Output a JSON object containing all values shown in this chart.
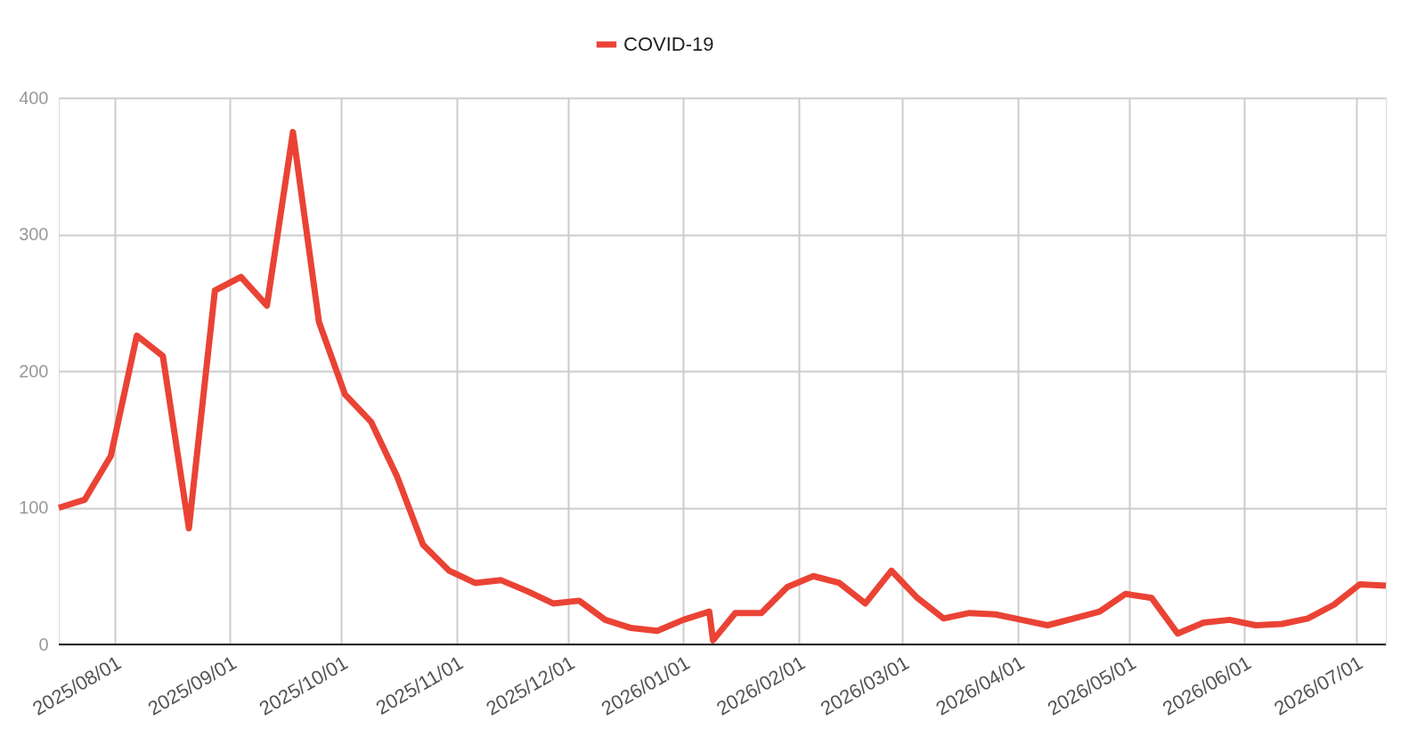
{
  "chart_data": {
    "type": "line",
    "x": [
      "2025-07-17",
      "2025-07-24",
      "2025-07-31",
      "2025-08-07",
      "2025-08-14",
      "2025-08-21",
      "2025-08-28",
      "2025-09-04",
      "2025-09-11",
      "2025-09-18",
      "2025-09-25",
      "2025-10-02",
      "2025-10-09",
      "2025-10-16",
      "2025-10-23",
      "2025-10-30",
      "2025-11-06",
      "2025-11-13",
      "2025-11-20",
      "2025-11-27",
      "2025-12-04",
      "2025-12-11",
      "2025-12-18",
      "2025-12-25",
      "2026-01-01",
      "2026-01-08",
      "2026-01-09",
      "2026-01-15",
      "2026-01-22",
      "2026-01-29",
      "2026-02-05",
      "2026-02-12",
      "2026-02-19",
      "2026-02-26",
      "2026-03-05",
      "2026-03-12",
      "2026-03-19",
      "2026-03-26",
      "2026-04-02",
      "2026-04-09",
      "2026-04-16",
      "2026-04-23",
      "2026-04-30",
      "2026-05-07",
      "2026-05-14",
      "2026-05-21",
      "2026-05-28",
      "2026-06-04",
      "2026-06-11",
      "2026-06-18",
      "2026-06-25",
      "2026-07-02",
      "2026-07-09"
    ],
    "series": [
      {
        "name": "COVID-19",
        "color": "#ea4335",
        "values": [
          100,
          106,
          138,
          226,
          211,
          85,
          259,
          269,
          248,
          375,
          236,
          183,
          163,
          123,
          73,
          54,
          45,
          47,
          39,
          30,
          32,
          18,
          12,
          10,
          18,
          24,
          3,
          23,
          23,
          42,
          50,
          45,
          30,
          54,
          34,
          19,
          23,
          22,
          18,
          14,
          19,
          24,
          37,
          34,
          8,
          16,
          18,
          14,
          15,
          19,
          29,
          44,
          43
        ]
      }
    ],
    "xlim": [
      "2025-07-17",
      "2026-07-09"
    ],
    "xticks": [
      {
        "value": "2025-08-01",
        "label": "2025/08/01"
      },
      {
        "value": "2025-09-01",
        "label": "2025/09/01"
      },
      {
        "value": "2025-10-01",
        "label": "2025/10/01"
      },
      {
        "value": "2025-11-01",
        "label": "2025/11/01"
      },
      {
        "value": "2025-12-01",
        "label": "2025/12/01"
      },
      {
        "value": "2026-01-01",
        "label": "2026/01/01"
      },
      {
        "value": "2026-02-01",
        "label": "2026/02/01"
      },
      {
        "value": "2026-03-01",
        "label": "2026/03/01"
      },
      {
        "value": "2026-04-01",
        "label": "2026/04/01"
      },
      {
        "value": "2026-05-01",
        "label": "2026/05/01"
      },
      {
        "value": "2026-06-01",
        "label": "2026/06/01"
      },
      {
        "value": "2026-07-01",
        "label": "2026/07/01"
      }
    ],
    "ylim": [
      0,
      400
    ],
    "yticks": [
      0,
      100,
      200,
      300,
      400
    ],
    "grid": true,
    "legend": "top",
    "marker": "none",
    "line_style": "solid"
  }
}
